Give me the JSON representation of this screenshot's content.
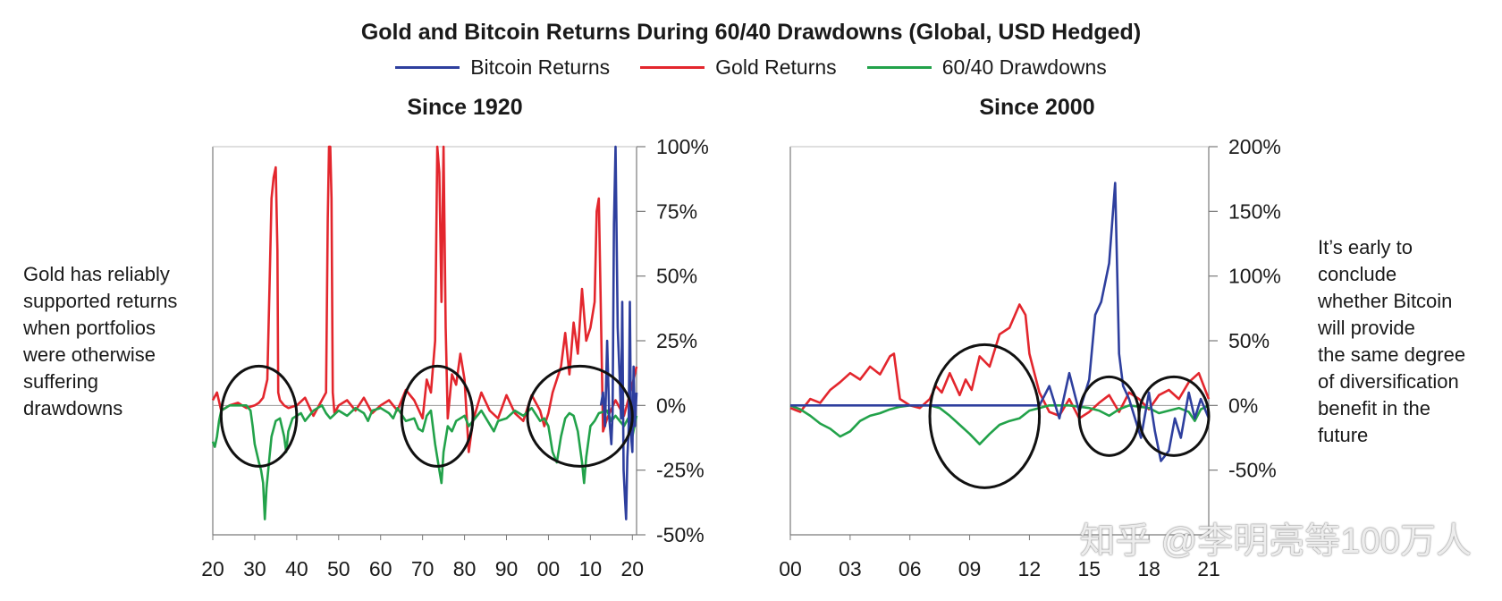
{
  "title": "Gold and Bitcoin Returns During 60/40 Drawdowns (Global, USD Hedged)",
  "colors": {
    "bitcoin": "#2e3f9e",
    "gold": "#e3262d",
    "drawdown": "#22a24a",
    "axis": "#7a7a7a"
  },
  "legend": [
    {
      "label": "Bitcoin Returns",
      "color": "#2e3f9e"
    },
    {
      "label": "Gold Returns",
      "color": "#e3262d"
    },
    {
      "label": "60/40 Drawdowns",
      "color": "#22a24a"
    }
  ],
  "left_note": "Gold has reliably\nsupported returns\nwhen portfolios\nwere otherwise\nsuffering\ndrawdowns",
  "right_note": "It’s early to\nconclude\nwhether Bitcoin\nwill provide\nthe same degree\nof diversification\nbenefit in the\nfuture",
  "watermark": "知乎 @李明亮等100万人",
  "chart_data": [
    {
      "type": "line",
      "title": "Since 1920",
      "x_range": [
        1920,
        2021
      ],
      "ylim": [
        -50,
        100
      ],
      "yticks": [
        100,
        75,
        50,
        25,
        0,
        -25,
        -50
      ],
      "ytick_labels": [
        "100%",
        "75%",
        "50%",
        "25%",
        "0%",
        "-25%",
        "-50%"
      ],
      "xticks": [
        1920,
        1930,
        1940,
        1950,
        1960,
        1970,
        1980,
        1990,
        2000,
        2010,
        2020
      ],
      "xtick_labels": [
        "20",
        "30",
        "40",
        "50",
        "60",
        "70",
        "80",
        "90",
        "00",
        "10",
        "20"
      ],
      "circled_periods": [
        [
          1922,
          1940
        ],
        [
          1965,
          1982
        ],
        [
          1995,
          2020
        ]
      ],
      "series": [
        {
          "name": "Gold Returns",
          "color": "#e3262d",
          "x": [
            1920,
            1921,
            1922,
            1924,
            1926,
            1928,
            1930,
            1931,
            1932,
            1933,
            1933.5,
            1934,
            1934.5,
            1935,
            1935.4,
            1935.6,
            1936,
            1937,
            1938,
            1940,
            1942,
            1944,
            1946,
            1947,
            1947.4,
            1947.7,
            1948,
            1948.3,
            1948.6,
            1949,
            1950,
            1952,
            1954,
            1956,
            1958,
            1960,
            1962,
            1964,
            1966,
            1968,
            1970,
            1971,
            1972,
            1973,
            1973.5,
            1974,
            1974.5,
            1975,
            1975.5,
            1976,
            1977,
            1978,
            1979,
            1980,
            1981,
            1982,
            1984,
            1986,
            1988,
            1990,
            1992,
            1994,
            1996,
            1998,
            1999,
            2000,
            2001,
            2002,
            2003,
            2004,
            2005,
            2006,
            2007,
            2008,
            2009,
            2010,
            2011,
            2011.5,
            2012,
            2013,
            2014,
            2016,
            2018,
            2020,
            2021
          ],
          "y": [
            2,
            5,
            -2,
            0,
            1,
            -1,
            0,
            1,
            3,
            10,
            45,
            80,
            88,
            92,
            60,
            5,
            2,
            0,
            -1,
            0,
            3,
            -4,
            2,
            5,
            72,
            100,
            100,
            80,
            5,
            -3,
            0,
            2,
            -2,
            3,
            -3,
            0,
            2,
            -2,
            6,
            2,
            -5,
            10,
            5,
            25,
            100,
            90,
            40,
            100,
            30,
            -5,
            12,
            8,
            20,
            10,
            -18,
            -6,
            5,
            -2,
            -5,
            4,
            -3,
            -6,
            4,
            -2,
            -8,
            -3,
            5,
            10,
            15,
            28,
            12,
            32,
            20,
            45,
            25,
            30,
            40,
            75,
            80,
            -10,
            -5,
            2,
            -4,
            8,
            15
          ]
        },
        {
          "name": "60/40 Drawdowns",
          "color": "#22a24a",
          "x": [
            1920,
            1920.5,
            1921,
            1921.5,
            1922,
            1923,
            1924,
            1926,
            1928,
            1929,
            1929.5,
            1930,
            1931,
            1931.5,
            1932,
            1932.4,
            1932.8,
            1933.5,
            1934,
            1935,
            1936,
            1937,
            1937.5,
            1938,
            1939,
            1940,
            1941,
            1942,
            1944,
            1946,
            1947,
            1948,
            1950,
            1952,
            1954,
            1956,
            1957,
            1958,
            1960,
            1962,
            1963,
            1964,
            1966,
            1968,
            1969,
            1970,
            1971,
            1972,
            1973,
            1974,
            1974.5,
            1975,
            1976,
            1977,
            1978,
            1980,
            1981,
            1982,
            1984,
            1987,
            1988,
            1990,
            1992,
            1994,
            1996,
            1998,
            1999,
            2000,
            2001,
            2002,
            2003,
            2004,
            2005,
            2006,
            2007,
            2008,
            2008.5,
            2009,
            2010,
            2011,
            2012,
            2014,
            2015,
            2016,
            2018,
            2019,
            2020,
            2021
          ],
          "y": [
            -14,
            -16,
            -12,
            -6,
            -2,
            -1,
            0,
            0,
            0,
            -2,
            -8,
            -15,
            -22,
            -25,
            -30,
            -44,
            -32,
            -20,
            -12,
            -6,
            -5,
            -12,
            -18,
            -10,
            -5,
            -4,
            -3,
            -6,
            -2,
            0,
            -3,
            -5,
            -2,
            -4,
            -1,
            -3,
            -6,
            -2,
            -1,
            -3,
            -5,
            -1,
            -6,
            -5,
            -9,
            -10,
            -4,
            -2,
            -15,
            -25,
            -30,
            -18,
            -8,
            -10,
            -6,
            -4,
            -8,
            -6,
            -2,
            -10,
            -6,
            -5,
            -2,
            -4,
            -1,
            -6,
            -5,
            -8,
            -18,
            -22,
            -12,
            -5,
            -3,
            -4,
            -10,
            -22,
            -30,
            -20,
            -8,
            -6,
            -3,
            -2,
            -6,
            -4,
            -8,
            -5,
            -12,
            -4
          ]
        },
        {
          "name": "Bitcoin Returns",
          "color": "#2e3f9e",
          "x": [
            2012.5,
            2013,
            2013.5,
            2014,
            2014.5,
            2015,
            2015.3,
            2015.6,
            2016,
            2016.5,
            2017,
            2017.3,
            2017.6,
            2017.9,
            2018.2,
            2018.5,
            2018.8,
            2019.1,
            2019.4,
            2019.7,
            2020,
            2020.3,
            2020.6,
            2021
          ],
          "y": [
            0,
            5,
            -8,
            25,
            -5,
            -15,
            -3,
            70,
            100,
            30,
            10,
            -5,
            40,
            -25,
            -35,
            -44,
            -20,
            -10,
            40,
            -12,
            -18,
            15,
            -8,
            5
          ]
        }
      ]
    },
    {
      "type": "line",
      "title": "Since 2000",
      "x_range": [
        2000,
        2021
      ],
      "ylim": [
        -100,
        200
      ],
      "yticks": [
        200,
        150,
        100,
        50,
        0,
        -50
      ],
      "ytick_labels": [
        "200%",
        "150%",
        "100%",
        "50%",
        "0%",
        "-50%"
      ],
      "xticks": [
        2000,
        2003,
        2006,
        2009,
        2012,
        2015,
        2018,
        2021
      ],
      "xtick_labels": [
        "00",
        "03",
        "06",
        "09",
        "12",
        "15",
        "18",
        "21"
      ],
      "circled_periods": [
        [
          2007,
          2012.5
        ],
        [
          2014.5,
          2017.5
        ],
        [
          2017.5,
          2021
        ]
      ],
      "series": [
        {
          "name": "Gold Returns",
          "color": "#e3262d",
          "x": [
            2000,
            2000.5,
            2001,
            2001.5,
            2002,
            2002.5,
            2003,
            2003.5,
            2004,
            2004.5,
            2005,
            2005.2,
            2005.5,
            2006,
            2006.5,
            2007,
            2007.3,
            2007.6,
            2008,
            2008.5,
            2008.8,
            2009.1,
            2009.5,
            2010,
            2010.5,
            2011,
            2011.5,
            2011.8,
            2012,
            2012.5,
            2013,
            2013.5,
            2014,
            2014.5,
            2015,
            2015.5,
            2016,
            2016.5,
            2017,
            2017.5,
            2018,
            2018.5,
            2019,
            2019.5,
            2020,
            2020.5,
            2021
          ],
          "y": [
            -2,
            -5,
            5,
            2,
            12,
            18,
            25,
            20,
            30,
            24,
            38,
            40,
            5,
            0,
            -2,
            5,
            15,
            10,
            25,
            8,
            20,
            12,
            38,
            30,
            55,
            60,
            78,
            70,
            40,
            10,
            -5,
            -8,
            5,
            -10,
            -5,
            2,
            8,
            -5,
            10,
            5,
            -3,
            8,
            12,
            5,
            18,
            25,
            5
          ]
        },
        {
          "name": "60/40 Drawdowns",
          "color": "#22a24a",
          "x": [
            2000,
            2000.5,
            2001,
            2001.5,
            2002,
            2002.5,
            2003,
            2003.5,
            2004,
            2004.5,
            2005,
            2005.5,
            2006,
            2007,
            2007.5,
            2008,
            2008.5,
            2009,
            2009.5,
            2010,
            2010.5,
            2011,
            2011.5,
            2012,
            2012.5,
            2013,
            2014,
            2015,
            2015.5,
            2016,
            2016.5,
            2017,
            2018,
            2018.5,
            2019,
            2019.5,
            2020,
            2020.3,
            2020.6,
            2021
          ],
          "y": [
            0,
            -3,
            -8,
            -14,
            -18,
            -24,
            -20,
            -12,
            -8,
            -6,
            -3,
            -1,
            0,
            0,
            -2,
            -8,
            -15,
            -22,
            -30,
            -22,
            -15,
            -12,
            -10,
            -4,
            -2,
            0,
            0,
            -2,
            -4,
            -8,
            -3,
            0,
            -2,
            -6,
            -4,
            -2,
            -5,
            -12,
            -3,
            0
          ]
        },
        {
          "name": "Bitcoin Returns",
          "color": "#2e3f9e",
          "x": [
            2000,
            2012.5,
            2013,
            2013.5,
            2014,
            2014.5,
            2015,
            2015.3,
            2015.6,
            2016,
            2016.3,
            2016.5,
            2016.7,
            2017,
            2017.3,
            2017.6,
            2018,
            2018.3,
            2018.6,
            2019,
            2019.3,
            2019.6,
            2020,
            2020.3,
            2020.6,
            2021
          ],
          "y": [
            0,
            0,
            15,
            -10,
            25,
            -5,
            20,
            70,
            80,
            110,
            172,
            40,
            15,
            5,
            -10,
            -25,
            10,
            -20,
            -43,
            -35,
            -10,
            -25,
            10,
            -10,
            5,
            -10
          ]
        }
      ]
    }
  ]
}
